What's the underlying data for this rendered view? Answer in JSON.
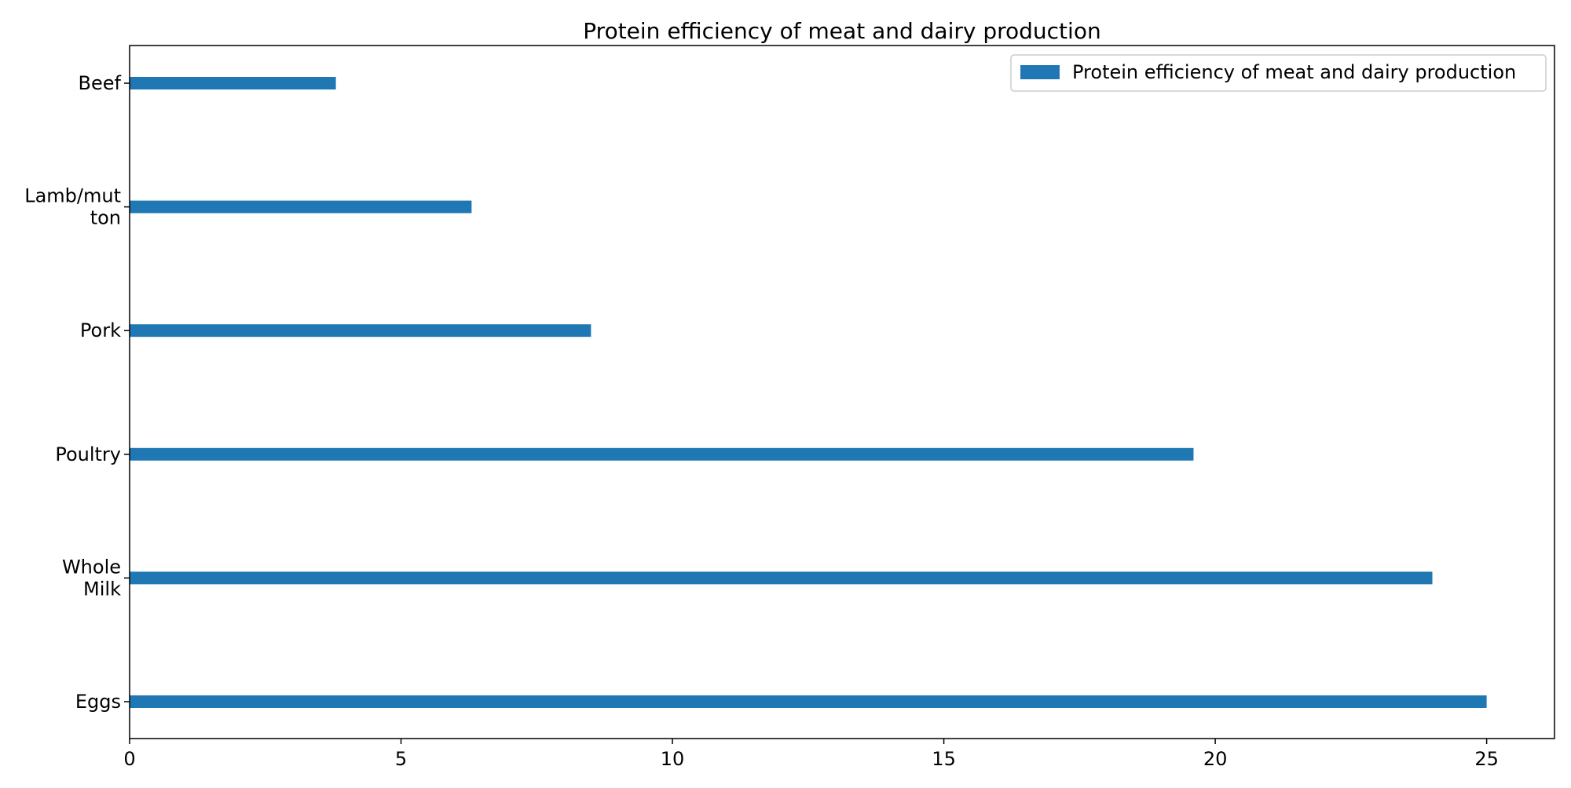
{
  "chart_data": {
    "type": "bar",
    "orientation": "horizontal",
    "title": "Protein efficiency of meat and dairy production",
    "xlabel": "",
    "ylabel": "",
    "categories": [
      "Beef",
      "Lamb/mutton",
      "Pork",
      "Poultry",
      "Whole Milk",
      "Eggs"
    ],
    "category_tick_lines": [
      [
        "Beef"
      ],
      [
        "Lamb/mut",
        "ton"
      ],
      [
        "Pork"
      ],
      [
        "Poultry"
      ],
      [
        "Whole",
        "Milk"
      ],
      [
        "Eggs"
      ]
    ],
    "series": [
      {
        "name": "Protein efficiency of meat and dairy production",
        "values": [
          3.8,
          6.3,
          8.5,
          19.6,
          24.0,
          25.0
        ]
      }
    ],
    "xlim": [
      0,
      26.25
    ],
    "xticks": [
      0,
      5,
      10,
      15,
      20,
      25
    ],
    "xtick_labels": [
      "0",
      "5",
      "10",
      "15",
      "20",
      "25"
    ],
    "grid": false,
    "legend_position": "top-right",
    "colors": {
      "bar": "#1f77b4",
      "axis": "#000000",
      "legend_border": "#cccccc"
    }
  }
}
